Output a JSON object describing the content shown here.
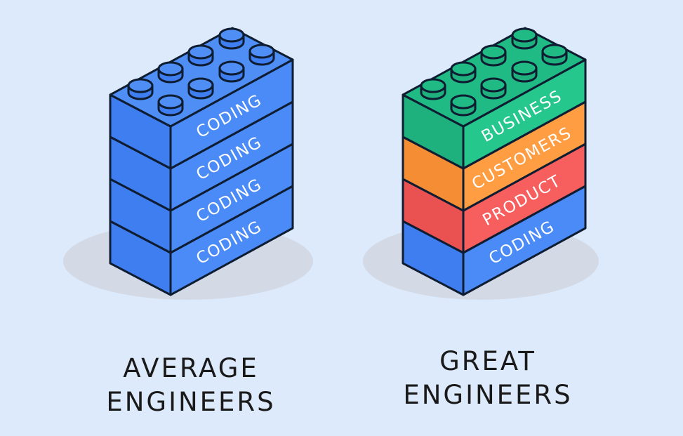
{
  "colors": {
    "background": "#ddeafb",
    "shadow": "#d3dae6",
    "outline": "#0f1d33",
    "label_text": "#ffffff",
    "caption_text": "#1a1a1a"
  },
  "stacks": [
    {
      "caption_line1": "AVERAGE",
      "caption_line2": "ENGINEERS",
      "bricks": [
        {
          "label": "CODING",
          "top": "#4f8ff5",
          "front": "#3f7ef0",
          "side": "#4a8bf7"
        },
        {
          "label": "CODING",
          "top": "#4f8ff5",
          "front": "#3f7ef0",
          "side": "#4a8bf7"
        },
        {
          "label": "CODING",
          "top": "#4f8ff5",
          "front": "#3f7ef0",
          "side": "#4a8bf7"
        },
        {
          "label": "CODING",
          "top": "#4f8ff5",
          "front": "#3f7ef0",
          "side": "#4a8bf7"
        }
      ]
    },
    {
      "caption_line1": "GREAT",
      "caption_line2": "ENGINEERS",
      "bricks": [
        {
          "label": "BUSINESS",
          "top": "#20bb85",
          "front": "#1eb07d",
          "side": "#25c78d"
        },
        {
          "label": "CUSTOMERS",
          "top": "#fb9b40",
          "front": "#f48d33",
          "side": "#ff9d42"
        },
        {
          "label": "PRODUCT",
          "top": "#f15a5a",
          "front": "#ea5252",
          "side": "#f75e5e"
        },
        {
          "label": "CODING",
          "top": "#4f8ff5",
          "front": "#3f7ef0",
          "side": "#4a8bf7"
        }
      ]
    }
  ]
}
